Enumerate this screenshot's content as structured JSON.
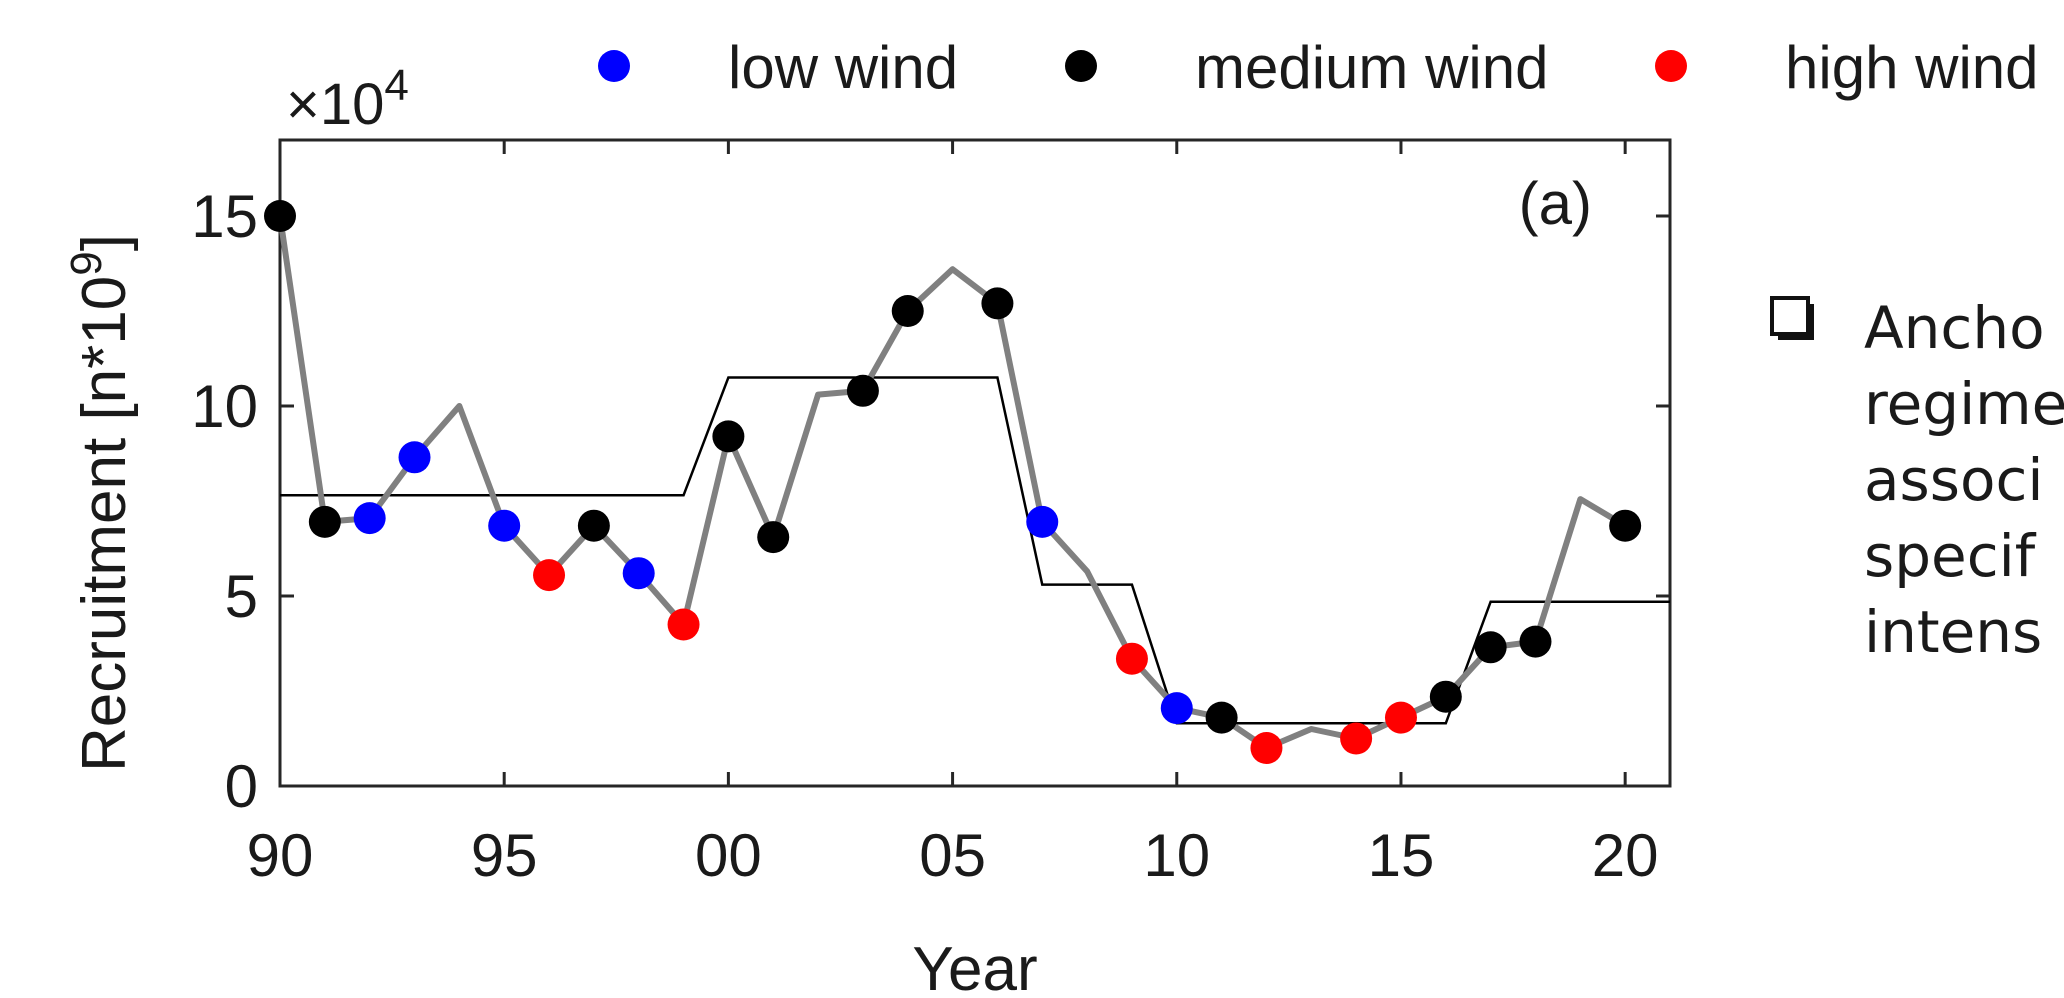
{
  "chart_data": {
    "type": "line",
    "panel_label": "(a)",
    "xlabel": "Year",
    "ylabel": "Recruitment [n*10",
    "ylabel_exp": "9",
    "ylabel_close": "]",
    "y_multiplier_base": "×10",
    "y_multiplier_exp": "4",
    "xlim": [
      1990,
      2021
    ],
    "ylim": [
      0,
      17
    ],
    "x_ticks": [
      1990,
      1995,
      2000,
      2005,
      2010,
      2015,
      2020
    ],
    "x_tick_labels": [
      "90",
      "95",
      "00",
      "05",
      "10",
      "15",
      "20"
    ],
    "y_ticks": [
      0,
      5,
      10,
      15
    ],
    "y_tick_labels": [
      "0",
      "5",
      "10",
      "15"
    ],
    "legend": [
      {
        "label": "low wind",
        "color": "#0000ff"
      },
      {
        "label": "medium wind",
        "color": "#000000"
      },
      {
        "label": "high wind",
        "color": "#ff0000"
      }
    ],
    "legend_position": "top",
    "series": [
      {
        "role": "recruitment",
        "color": "#808080",
        "x": [
          1990,
          1991,
          1992,
          1993,
          1994,
          1995,
          1996,
          1997,
          1998,
          1999,
          2000,
          2001,
          2002,
          2003,
          2004,
          2005,
          2006,
          2007,
          2008,
          2009,
          2010,
          2011,
          2012,
          2013,
          2014,
          2015,
          2016,
          2017,
          2018,
          2019,
          2020
        ],
        "y": [
          15.0,
          6.95,
          7.05,
          8.65,
          10.0,
          6.85,
          5.55,
          6.85,
          5.6,
          4.25,
          9.2,
          6.55,
          10.3,
          10.4,
          12.5,
          13.6,
          12.7,
          6.95,
          5.65,
          3.35,
          2.05,
          1.8,
          1.0,
          1.5,
          1.25,
          1.8,
          2.35,
          3.65,
          3.8,
          7.55,
          6.85
        ],
        "wind": [
          "medium",
          "medium",
          "low",
          "low",
          null,
          "low",
          "high",
          "medium",
          "low",
          "high",
          "medium",
          "medium",
          null,
          "medium",
          "medium",
          null,
          "medium",
          "low",
          null,
          "high",
          "low",
          "medium",
          "high",
          null,
          "high",
          "high",
          "medium",
          "medium",
          "medium",
          null,
          "medium"
        ]
      },
      {
        "role": "regime",
        "color": "#000000",
        "x": [
          1990,
          1999,
          2000,
          2006,
          2007,
          2009,
          2010,
          2016,
          2017,
          2021
        ],
        "y": [
          7.65,
          7.65,
          10.75,
          10.75,
          5.3,
          5.3,
          1.65,
          1.65,
          4.85,
          4.85
        ]
      }
    ]
  },
  "side_note": {
    "lines": [
      "Ancho",
      "regime",
      "associ",
      "specif",
      "intens"
    ],
    "icon": "shadowed-checkbox-icon"
  }
}
